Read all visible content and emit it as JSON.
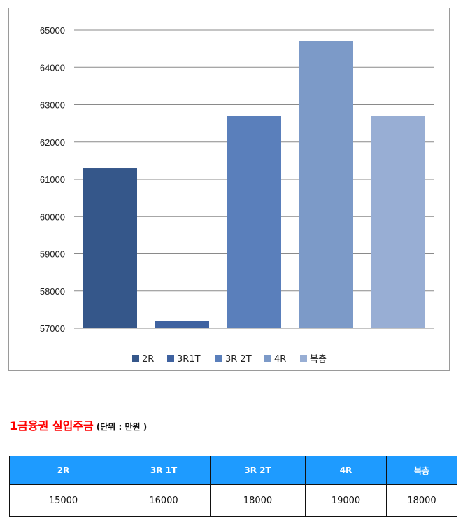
{
  "chart_data": {
    "type": "bar",
    "categories": [
      "2R",
      "3R1T",
      "3R 2T",
      "4R",
      "복층"
    ],
    "values": [
      61300,
      57200,
      62700,
      64700,
      62700
    ],
    "colors": [
      "#35578a",
      "#3f62a0",
      "#5a7fbb",
      "#7c9ac8",
      "#98aed4"
    ],
    "ylim": [
      57000,
      65000
    ],
    "yticks": [
      57000,
      58000,
      59000,
      60000,
      61000,
      62000,
      63000,
      64000,
      65000
    ],
    "legend": [
      "2R",
      "3R1T",
      "3R 2T",
      "4R",
      "복층"
    ],
    "legend_position": "bottom",
    "grid": true
  },
  "section": {
    "title": "1금융권 실입주금",
    "unit": "(단위 : 만원 )"
  },
  "table": {
    "headers": [
      "2R",
      "3R 1T",
      "3R 2T",
      "4R",
      "복층"
    ],
    "values": [
      "15000",
      "16000",
      "18000",
      "19000",
      "18000"
    ]
  }
}
